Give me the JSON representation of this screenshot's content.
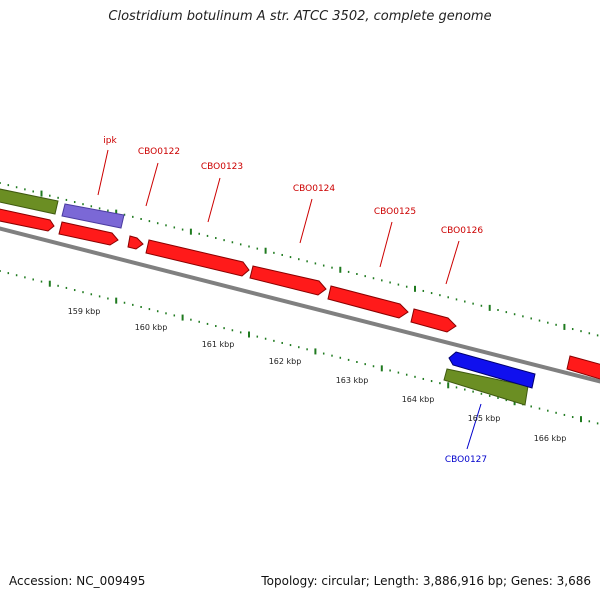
{
  "title": "Clostridium botulinum A str. ATCC 3502, complete genome",
  "footer": {
    "accession": "Accession: NC_009495",
    "summary": "Topology: circular; Length: 3,886,916 bp; Genes: 3,686"
  },
  "colors": {
    "forward_gene": "#ff1a1a",
    "reverse_gene": "#1010ee",
    "gene_outline": "#8b0000",
    "rna_gene": "#7b68d6",
    "olive_feature": "#6b8e23",
    "backbone": "#808080",
    "tick": "#1f7a1f",
    "label_red": "#cc0000",
    "label_blue": "#0000cc"
  },
  "genes": [
    {
      "name": "ipk",
      "strand": "+",
      "label_color": "red"
    },
    {
      "name": "CBO0122",
      "strand": "+",
      "label_color": "red"
    },
    {
      "name": "CBO0123",
      "strand": "+",
      "label_color": "red"
    },
    {
      "name": "CBO0124",
      "strand": "+",
      "label_color": "red"
    },
    {
      "name": "CBO0125",
      "strand": "+",
      "label_color": "red"
    },
    {
      "name": "CBO0126",
      "strand": "+",
      "label_color": "red"
    },
    {
      "name": "CBO0127",
      "strand": "-",
      "label_color": "blue"
    }
  ],
  "scale_labels": [
    "159 kbp",
    "160 kbp",
    "161 kbp",
    "162 kbp",
    "163 kbp",
    "164 kbp",
    "165 kbp",
    "166 kbp"
  ]
}
